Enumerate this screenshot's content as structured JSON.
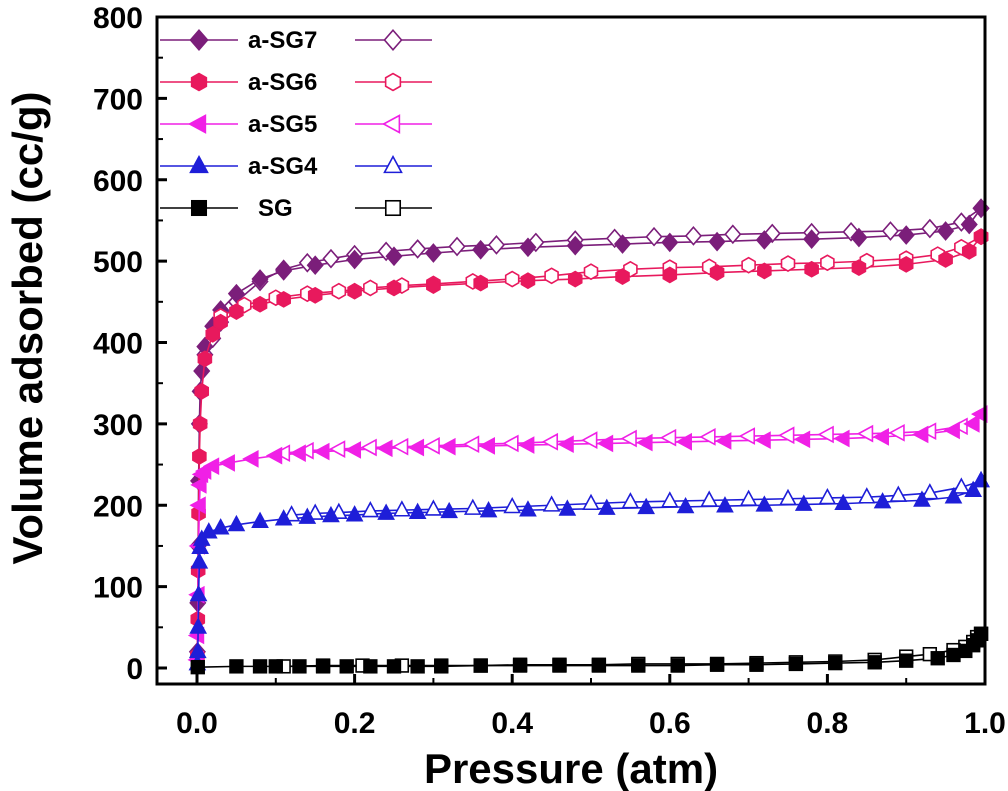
{
  "chart_data": {
    "type": "scatter",
    "title": "",
    "xlabel": "Pressure (atm)",
    "ylabel": "Volume adsorbed (cc/g)",
    "xlim": [
      0.0,
      1.0
    ],
    "ylim": [
      0,
      800
    ],
    "x_ticks": [
      "0.0",
      "0.2",
      "0.4",
      "0.6",
      "0.8",
      "1.0"
    ],
    "y_ticks": [
      "0",
      "100",
      "200",
      "300",
      "400",
      "500",
      "600",
      "700",
      "800"
    ],
    "legend_position": "top-left",
    "grid": false,
    "series": [
      {
        "name": "a-SG7",
        "color": "#7B1E7A",
        "marker": "diamond",
        "adsorption": [
          [
            0.0005,
            20
          ],
          [
            0.001,
            80
          ],
          [
            0.0015,
            150
          ],
          [
            0.002,
            230
          ],
          [
            0.003,
            300
          ],
          [
            0.004,
            340
          ],
          [
            0.006,
            365
          ],
          [
            0.01,
            395
          ],
          [
            0.02,
            420
          ],
          [
            0.03,
            440
          ],
          [
            0.05,
            460
          ],
          [
            0.08,
            478
          ],
          [
            0.11,
            488
          ],
          [
            0.15,
            495
          ],
          [
            0.2,
            502
          ],
          [
            0.25,
            506
          ],
          [
            0.3,
            510
          ],
          [
            0.36,
            514
          ],
          [
            0.42,
            517
          ],
          [
            0.48,
            519
          ],
          [
            0.54,
            521
          ],
          [
            0.6,
            523
          ],
          [
            0.66,
            524
          ],
          [
            0.72,
            526
          ],
          [
            0.78,
            527
          ],
          [
            0.84,
            529
          ],
          [
            0.9,
            532
          ],
          [
            0.95,
            537
          ],
          [
            0.98,
            545
          ],
          [
            0.995,
            565
          ]
        ],
        "desorption": [
          [
            0.995,
            565
          ],
          [
            0.97,
            548
          ],
          [
            0.93,
            540
          ],
          [
            0.88,
            537
          ],
          [
            0.83,
            536
          ],
          [
            0.78,
            535
          ],
          [
            0.73,
            534
          ],
          [
            0.68,
            533
          ],
          [
            0.63,
            531
          ],
          [
            0.58,
            530
          ],
          [
            0.53,
            528
          ],
          [
            0.48,
            526
          ],
          [
            0.43,
            523
          ],
          [
            0.38,
            520
          ],
          [
            0.33,
            518
          ],
          [
            0.28,
            515
          ],
          [
            0.24,
            512
          ],
          [
            0.2,
            508
          ],
          [
            0.17,
            503
          ],
          [
            0.14,
            498
          ],
          [
            0.11,
            490
          ],
          [
            0.08,
            475
          ],
          [
            0.05,
            450
          ],
          [
            0.03,
            425
          ],
          [
            0.02,
            405
          ],
          [
            0.01,
            385
          ]
        ]
      },
      {
        "name": "a-SG6",
        "color": "#E8195D",
        "marker": "hexagon",
        "adsorption": [
          [
            0.0005,
            15
          ],
          [
            0.001,
            60
          ],
          [
            0.0015,
            120
          ],
          [
            0.002,
            190
          ],
          [
            0.003,
            260
          ],
          [
            0.004,
            300
          ],
          [
            0.006,
            340
          ],
          [
            0.01,
            380
          ],
          [
            0.02,
            410
          ],
          [
            0.03,
            425
          ],
          [
            0.05,
            438
          ],
          [
            0.08,
            447
          ],
          [
            0.11,
            453
          ],
          [
            0.15,
            458
          ],
          [
            0.2,
            463
          ],
          [
            0.25,
            467
          ],
          [
            0.3,
            470
          ],
          [
            0.36,
            473
          ],
          [
            0.42,
            476
          ],
          [
            0.48,
            478
          ],
          [
            0.54,
            481
          ],
          [
            0.6,
            483
          ],
          [
            0.66,
            486
          ],
          [
            0.72,
            488
          ],
          [
            0.78,
            490
          ],
          [
            0.84,
            492
          ],
          [
            0.9,
            496
          ],
          [
            0.95,
            502
          ],
          [
            0.98,
            512
          ],
          [
            0.995,
            530
          ]
        ],
        "desorption": [
          [
            0.995,
            530
          ],
          [
            0.97,
            517
          ],
          [
            0.94,
            508
          ],
          [
            0.9,
            503
          ],
          [
            0.85,
            500
          ],
          [
            0.8,
            498
          ],
          [
            0.75,
            497
          ],
          [
            0.7,
            495
          ],
          [
            0.65,
            493
          ],
          [
            0.6,
            492
          ],
          [
            0.55,
            490
          ],
          [
            0.5,
            487
          ],
          [
            0.45,
            482
          ],
          [
            0.4,
            478
          ],
          [
            0.35,
            475
          ],
          [
            0.3,
            472
          ],
          [
            0.26,
            470
          ],
          [
            0.22,
            467
          ],
          [
            0.18,
            463
          ],
          [
            0.14,
            460
          ],
          [
            0.1,
            455
          ],
          [
            0.06,
            446
          ],
          [
            0.03,
            432
          ]
        ]
      },
      {
        "name": "a-SG5",
        "color": "#F020E6",
        "marker": "triangle-left",
        "adsorption": [
          [
            0.0005,
            10
          ],
          [
            0.001,
            40
          ],
          [
            0.0015,
            90
          ],
          [
            0.002,
            150
          ],
          [
            0.003,
            200
          ],
          [
            0.004,
            225
          ],
          [
            0.006,
            238
          ],
          [
            0.01,
            242
          ],
          [
            0.02,
            248
          ],
          [
            0.04,
            252
          ],
          [
            0.07,
            257
          ],
          [
            0.1,
            261
          ],
          [
            0.13,
            264
          ],
          [
            0.16,
            266
          ],
          [
            0.2,
            268
          ],
          [
            0.24,
            270
          ],
          [
            0.28,
            271
          ],
          [
            0.32,
            272
          ],
          [
            0.37,
            273
          ],
          [
            0.42,
            274
          ],
          [
            0.47,
            275
          ],
          [
            0.52,
            276
          ],
          [
            0.57,
            277
          ],
          [
            0.62,
            278
          ],
          [
            0.67,
            279
          ],
          [
            0.72,
            280
          ],
          [
            0.77,
            281
          ],
          [
            0.82,
            282
          ],
          [
            0.87,
            284
          ],
          [
            0.92,
            287
          ],
          [
            0.96,
            292
          ],
          [
            0.985,
            300
          ],
          [
            0.995,
            312
          ]
        ],
        "desorption": [
          [
            0.995,
            312
          ],
          [
            0.97,
            297
          ],
          [
            0.93,
            291
          ],
          [
            0.89,
            289
          ],
          [
            0.85,
            288
          ],
          [
            0.8,
            287
          ],
          [
            0.75,
            286
          ],
          [
            0.7,
            285
          ],
          [
            0.65,
            284
          ],
          [
            0.6,
            283
          ],
          [
            0.55,
            282
          ],
          [
            0.5,
            280
          ],
          [
            0.45,
            278
          ],
          [
            0.4,
            276
          ],
          [
            0.35,
            275
          ],
          [
            0.3,
            273
          ],
          [
            0.26,
            272
          ],
          [
            0.22,
            271
          ],
          [
            0.18,
            269
          ],
          [
            0.14,
            267
          ],
          [
            0.11,
            264
          ]
        ]
      },
      {
        "name": "a-SG4",
        "color": "#1E1ED8",
        "marker": "triangle-up",
        "adsorption": [
          [
            0.0005,
            5
          ],
          [
            0.001,
            20
          ],
          [
            0.0015,
            50
          ],
          [
            0.002,
            90
          ],
          [
            0.003,
            130
          ],
          [
            0.004,
            148
          ],
          [
            0.006,
            158
          ],
          [
            0.015,
            167
          ],
          [
            0.03,
            172
          ],
          [
            0.05,
            176
          ],
          [
            0.08,
            180
          ],
          [
            0.11,
            183
          ],
          [
            0.14,
            185
          ],
          [
            0.17,
            187
          ],
          [
            0.2,
            188
          ],
          [
            0.24,
            190
          ],
          [
            0.28,
            191
          ],
          [
            0.32,
            192
          ],
          [
            0.37,
            193
          ],
          [
            0.42,
            194
          ],
          [
            0.47,
            195
          ],
          [
            0.52,
            196
          ],
          [
            0.57,
            197
          ],
          [
            0.62,
            198
          ],
          [
            0.67,
            199
          ],
          [
            0.72,
            200
          ],
          [
            0.77,
            201
          ],
          [
            0.82,
            202
          ],
          [
            0.87,
            204
          ],
          [
            0.92,
            206
          ],
          [
            0.96,
            210
          ],
          [
            0.985,
            218
          ],
          [
            0.995,
            230
          ]
        ],
        "desorption": [
          [
            0.995,
            230
          ],
          [
            0.97,
            222
          ],
          [
            0.93,
            215
          ],
          [
            0.89,
            212
          ],
          [
            0.85,
            210
          ],
          [
            0.8,
            209
          ],
          [
            0.75,
            208
          ],
          [
            0.7,
            207
          ],
          [
            0.65,
            206
          ],
          [
            0.6,
            205
          ],
          [
            0.55,
            204
          ],
          [
            0.5,
            202
          ],
          [
            0.45,
            200
          ],
          [
            0.4,
            198
          ],
          [
            0.35,
            196
          ],
          [
            0.3,
            195
          ],
          [
            0.26,
            194
          ],
          [
            0.22,
            193
          ],
          [
            0.18,
            191
          ],
          [
            0.15,
            190
          ],
          [
            0.12,
            188
          ]
        ]
      },
      {
        "name": "SG",
        "color": "#000000",
        "marker": "square",
        "adsorption": [
          [
            0.001,
            1
          ],
          [
            0.05,
            2
          ],
          [
            0.08,
            2
          ],
          [
            0.1,
            2
          ],
          [
            0.13,
            2
          ],
          [
            0.16,
            2
          ],
          [
            0.19,
            2
          ],
          [
            0.22,
            2
          ],
          [
            0.25,
            2
          ],
          [
            0.28,
            2
          ],
          [
            0.31,
            2
          ],
          [
            0.36,
            3
          ],
          [
            0.41,
            3
          ],
          [
            0.46,
            3
          ],
          [
            0.51,
            3
          ],
          [
            0.56,
            3
          ],
          [
            0.61,
            3
          ],
          [
            0.66,
            4
          ],
          [
            0.71,
            4
          ],
          [
            0.76,
            5
          ],
          [
            0.81,
            6
          ],
          [
            0.86,
            7
          ],
          [
            0.9,
            9
          ],
          [
            0.94,
            12
          ],
          [
            0.96,
            16
          ],
          [
            0.975,
            21
          ],
          [
            0.985,
            28
          ],
          [
            0.99,
            34
          ],
          [
            0.995,
            42
          ]
        ],
        "desorption": [
          [
            0.995,
            42
          ],
          [
            0.99,
            38
          ],
          [
            0.985,
            32
          ],
          [
            0.975,
            26
          ],
          [
            0.96,
            22
          ],
          [
            0.93,
            17
          ],
          [
            0.9,
            14
          ],
          [
            0.86,
            10
          ],
          [
            0.81,
            8
          ],
          [
            0.76,
            7
          ],
          [
            0.71,
            6
          ],
          [
            0.66,
            5
          ],
          [
            0.61,
            5
          ],
          [
            0.56,
            5
          ],
          [
            0.51,
            4
          ],
          [
            0.46,
            4
          ],
          [
            0.41,
            4
          ],
          [
            0.36,
            3
          ],
          [
            0.31,
            3
          ],
          [
            0.26,
            3
          ],
          [
            0.21,
            3
          ],
          [
            0.16,
            3
          ],
          [
            0.11,
            2
          ]
        ]
      }
    ]
  }
}
